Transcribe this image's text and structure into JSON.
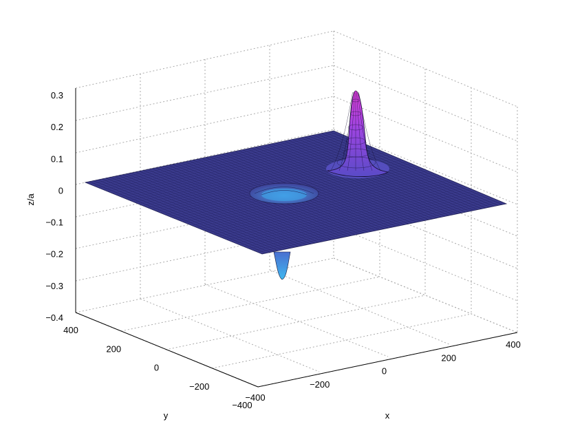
{
  "chart_data": {
    "type": "surface",
    "zlabel": "z/a",
    "xlabel": "x",
    "ylabel": "y",
    "xlim": [
      -400,
      400
    ],
    "ylim": [
      -400,
      400
    ],
    "zlim": [
      -0.4,
      0.3
    ],
    "x_ticks": [
      "−400",
      "−200",
      "0",
      "200",
      "400"
    ],
    "y_ticks": [
      "400",
      "200",
      "0",
      "−200",
      "−400"
    ],
    "z_ticks": [
      "0.3",
      "0.2",
      "0.1",
      "0",
      "−0.1",
      "−0.2",
      "−0.3",
      "−0.4"
    ],
    "grid": true,
    "features": [
      {
        "kind": "peak",
        "x": 150,
        "y": 200,
        "z": 0.29
      },
      {
        "kind": "trough",
        "x": -150,
        "y": -200,
        "z": -0.31
      }
    ],
    "colors": {
      "surface_base": "#3a3a8c",
      "peak_top": "#e23fe0",
      "trough_bottom": "#3fb8f0",
      "mesh": "#111133"
    }
  }
}
